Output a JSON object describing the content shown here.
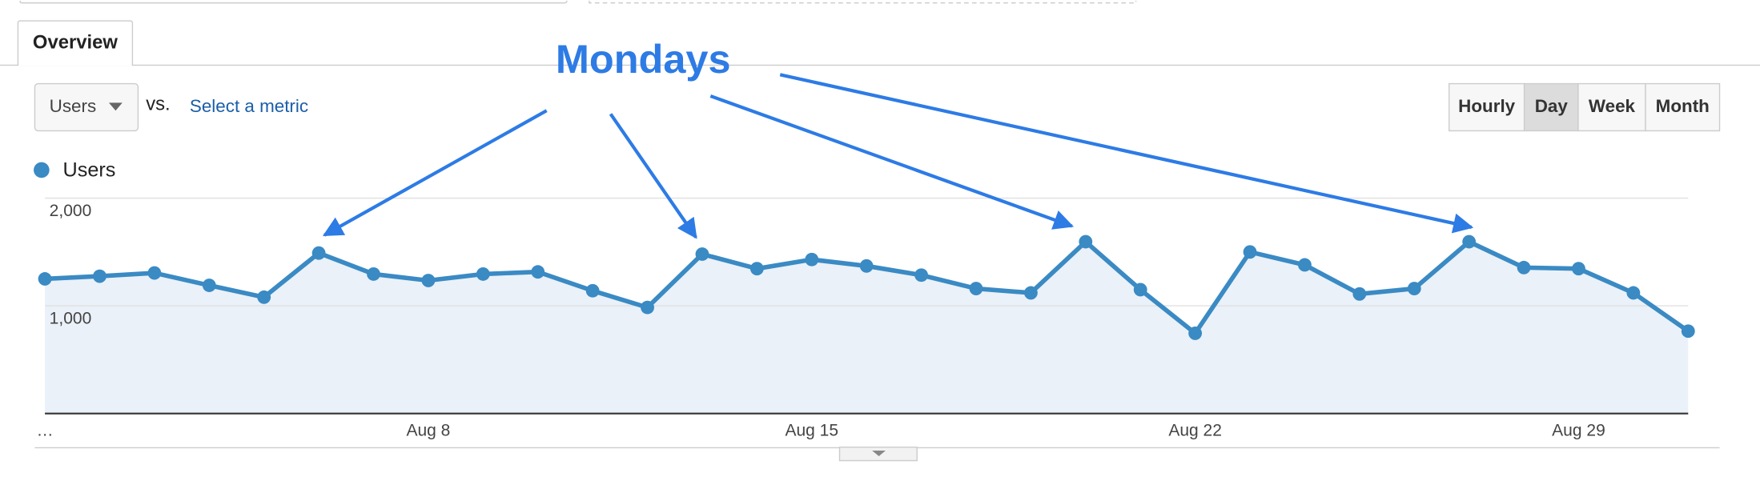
{
  "ui": {
    "tab": "Overview",
    "metric_dropdown": "Users",
    "vs": "vs.",
    "select_metric": "Select a metric",
    "buttons": [
      "Hourly",
      "Day",
      "Week",
      "Month"
    ]
  },
  "chart_data": {
    "type": "area",
    "annotation": "Mondays",
    "categories": [
      "…",
      null,
      null,
      null,
      null,
      null,
      null,
      "Aug 8",
      null,
      null,
      null,
      null,
      null,
      null,
      "Aug 15",
      null,
      null,
      null,
      null,
      null,
      null,
      "Aug 22",
      null,
      null,
      null,
      null,
      null,
      null,
      "Aug 29",
      null,
      null
    ],
    "series": [
      {
        "name": "Users",
        "color": "#3a8ac4",
        "values": [
          1250,
          1275,
          1305,
          1190,
          1080,
          1490,
          1295,
          1235,
          1295,
          1315,
          1140,
          985,
          1480,
          1345,
          1430,
          1370,
          1285,
          1160,
          1120,
          1595,
          1150,
          745,
          1500,
          1380,
          1110,
          1160,
          1595,
          1355,
          1345,
          1120,
          765
        ]
      }
    ],
    "ylim": [
      0,
      2000
    ],
    "yticks": [
      {
        "value": 1000,
        "label": "1,000"
      },
      {
        "value": 2000,
        "label": "2,000"
      }
    ],
    "grid": true
  }
}
